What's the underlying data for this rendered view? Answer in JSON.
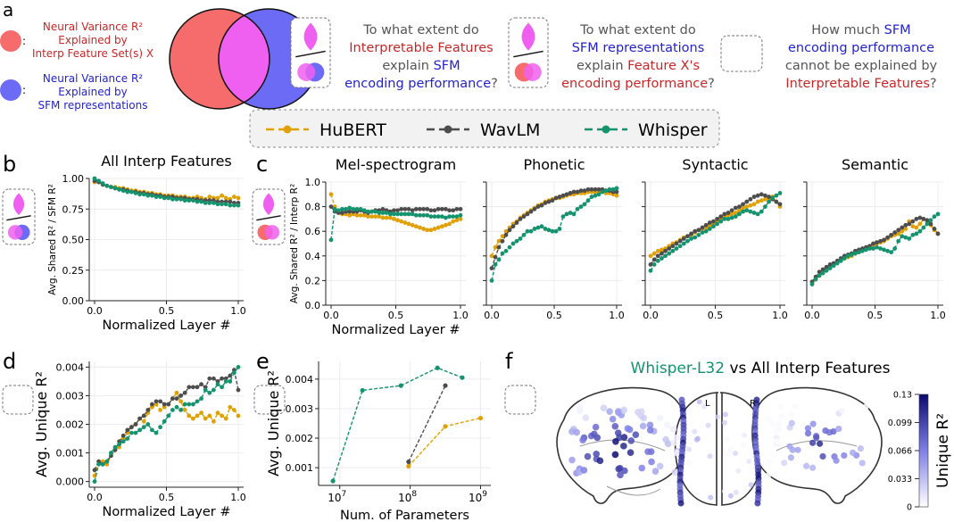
{
  "panel_letters": {
    "a": "a",
    "b": "b",
    "c": "c",
    "d": "d",
    "e": "e",
    "f": "f"
  },
  "legend_a": {
    "colon": ":",
    "red_text": [
      "Neural Variance R²",
      "Explained by",
      "Interp Feature Set(s) X"
    ],
    "blue_text": [
      "Neural Variance R²",
      "Explained by",
      "SFM representations"
    ]
  },
  "questions": {
    "q1": [
      [
        {
          "t": "To what extent do",
          "c": "gray"
        }
      ],
      [
        {
          "t": "Interpretable Features",
          "c": "red"
        }
      ],
      [
        {
          "t": "explain ",
          "c": "gray"
        },
        {
          "t": "SFM",
          "c": "blue"
        }
      ],
      [
        {
          "t": "encoding performance",
          "c": "blue"
        },
        {
          "t": "?",
          "c": "gray"
        }
      ]
    ],
    "q2": [
      [
        {
          "t": "To what extent do",
          "c": "gray"
        }
      ],
      [
        {
          "t": "SFM representations",
          "c": "blue"
        }
      ],
      [
        {
          "t": "explain ",
          "c": "gray"
        },
        {
          "t": "Feature X's",
          "c": "red"
        }
      ],
      [
        {
          "t": "encoding performance",
          "c": "red"
        },
        {
          "t": "?",
          "c": "gray"
        }
      ]
    ],
    "q3": [
      [
        {
          "t": "How much ",
          "c": "gray"
        },
        {
          "t": "SFM",
          "c": "blue"
        }
      ],
      [
        {
          "t": "encoding performance",
          "c": "blue"
        }
      ],
      [
        {
          "t": "cannot be explained by",
          "c": "gray"
        }
      ],
      [
        {
          "t": "Interpretable Features",
          "c": "red"
        },
        {
          "t": "?",
          "c": "gray"
        }
      ]
    ]
  },
  "colors": {
    "hubert": "#E0A106",
    "wavlm": "#4D4D4D",
    "whisper": "#14936E",
    "red": "#C62828",
    "blue": "#2323C8",
    "gray": "#555555",
    "venn_red": "#F66B6B",
    "venn_blue": "#6B6BF6",
    "venn_overlap": "#F060F0"
  },
  "model_legend": [
    "HuBERT",
    "WavLM",
    "Whisper"
  ],
  "chart_data": [
    {
      "id": "b",
      "type": "line",
      "title": "All Interp Features",
      "xlabel": "Normalized Layer #",
      "ylabel": "Avg. Shared R² / SFM R²",
      "xlim": [
        0,
        1
      ],
      "ylim": [
        0,
        1.0
      ],
      "xticks": [
        "0.0",
        "0.5",
        "1.0"
      ],
      "yticks": [
        "0.00",
        "0.25",
        "0.50",
        "0.75",
        "1.00"
      ],
      "series": [
        {
          "name": "HuBERT",
          "values": [
            0.97,
            0.97,
            0.95,
            0.94,
            0.93,
            0.93,
            0.92,
            0.92,
            0.91,
            0.9,
            0.9,
            0.89,
            0.89,
            0.88,
            0.88,
            0.87,
            0.87,
            0.86,
            0.86,
            0.86,
            0.85,
            0.85,
            0.85,
            0.84,
            0.84,
            0.85,
            0.84,
            0.83,
            0.85,
            0.84,
            0.84,
            0.86,
            0.84,
            0.83,
            0.85,
            0.84
          ]
        },
        {
          "name": "WavLM",
          "values": [
            0.98,
            0.97,
            0.95,
            0.94,
            0.93,
            0.92,
            0.91,
            0.91,
            0.9,
            0.89,
            0.89,
            0.88,
            0.88,
            0.87,
            0.87,
            0.86,
            0.86,
            0.85,
            0.85,
            0.85,
            0.84,
            0.84,
            0.84,
            0.83,
            0.83,
            0.83,
            0.82,
            0.82,
            0.82,
            0.82,
            0.81,
            0.81,
            0.81,
            0.81,
            0.8,
            0.8
          ]
        },
        {
          "name": "Whisper",
          "values": [
            1.0,
            0.98,
            0.96,
            0.94,
            0.93,
            0.92,
            0.91,
            0.9,
            0.89,
            0.89,
            0.88,
            0.87,
            0.87,
            0.86,
            0.86,
            0.85,
            0.85,
            0.84,
            0.84,
            0.83,
            0.83,
            0.83,
            0.82,
            0.82,
            0.82,
            0.81,
            0.81,
            0.8,
            0.8,
            0.8,
            0.79,
            0.79,
            0.79,
            0.78,
            0.78,
            0.78
          ]
        }
      ]
    },
    {
      "id": "c1",
      "type": "line",
      "title": "Mel-spectrogram",
      "xlabel": "Normalized Layer #",
      "ylabel": "Avg. Shared R² / Interp R²",
      "xlim": [
        0,
        1
      ],
      "ylim": [
        0,
        1.0
      ],
      "xticks": [
        "0.0",
        "0.5",
        "1.0"
      ],
      "yticks": [
        "0.0",
        "0.2",
        "0.4",
        "0.6",
        "0.8",
        "1.0"
      ],
      "series": [
        {
          "name": "HuBERT",
          "values": [
            0.9,
            0.8,
            0.76,
            0.74,
            0.74,
            0.73,
            0.74,
            0.73,
            0.73,
            0.73,
            0.72,
            0.72,
            0.72,
            0.72,
            0.71,
            0.71,
            0.71,
            0.7,
            0.69,
            0.68,
            0.67,
            0.66,
            0.65,
            0.64,
            0.63,
            0.62,
            0.61,
            0.61,
            0.62,
            0.63,
            0.64,
            0.65,
            0.66,
            0.68,
            0.69,
            0.7
          ]
        },
        {
          "name": "WavLM",
          "values": [
            0.8,
            0.76,
            0.75,
            0.75,
            0.76,
            0.76,
            0.76,
            0.76,
            0.77,
            0.76,
            0.75,
            0.76,
            0.77,
            0.77,
            0.78,
            0.77,
            0.76,
            0.77,
            0.77,
            0.78,
            0.78,
            0.78,
            0.77,
            0.78,
            0.78,
            0.78,
            0.78,
            0.77,
            0.77,
            0.78,
            0.78,
            0.78,
            0.77,
            0.77,
            0.78,
            0.78
          ]
        },
        {
          "name": "Whisper",
          "values": [
            0.53,
            0.78,
            0.77,
            0.78,
            0.78,
            0.79,
            0.78,
            0.78,
            0.78,
            0.77,
            0.76,
            0.76,
            0.76,
            0.75,
            0.75,
            0.75,
            0.74,
            0.74,
            0.74,
            0.74,
            0.74,
            0.74,
            0.74,
            0.73,
            0.73,
            0.73,
            0.73,
            0.72,
            0.72,
            0.72,
            0.72,
            0.71,
            0.72,
            0.72,
            0.72,
            0.73
          ]
        }
      ]
    },
    {
      "id": "c2",
      "type": "line",
      "title": "Phonetic",
      "xlim": [
        0,
        1
      ],
      "ylim": [
        0,
        1.0
      ],
      "xticks": [
        "0.0",
        "0.5",
        "1.0"
      ],
      "series": [
        {
          "name": "HuBERT",
          "values": [
            0.4,
            0.47,
            0.52,
            0.56,
            0.6,
            0.63,
            0.66,
            0.68,
            0.71,
            0.73,
            0.75,
            0.77,
            0.79,
            0.81,
            0.82,
            0.84,
            0.85,
            0.86,
            0.87,
            0.87,
            0.88,
            0.89,
            0.9,
            0.9,
            0.91,
            0.91,
            0.91,
            0.92,
            0.92,
            0.92,
            0.92,
            0.92,
            0.91,
            0.91,
            0.9,
            0.89
          ]
        },
        {
          "name": "WavLM",
          "values": [
            0.3,
            0.39,
            0.47,
            0.52,
            0.57,
            0.61,
            0.64,
            0.67,
            0.7,
            0.72,
            0.74,
            0.76,
            0.78,
            0.8,
            0.81,
            0.83,
            0.84,
            0.85,
            0.87,
            0.88,
            0.89,
            0.9,
            0.91,
            0.92,
            0.92,
            0.93,
            0.93,
            0.94,
            0.94,
            0.94,
            0.94,
            0.94,
            0.93,
            0.93,
            0.92,
            0.92
          ]
        },
        {
          "name": "Whisper",
          "values": [
            0.2,
            0.33,
            0.37,
            0.42,
            0.44,
            0.47,
            0.5,
            0.52,
            0.54,
            0.57,
            0.6,
            0.6,
            0.62,
            0.63,
            0.64,
            0.62,
            0.61,
            0.6,
            0.6,
            0.62,
            0.72,
            0.74,
            0.75,
            0.74,
            0.78,
            0.8,
            0.82,
            0.85,
            0.88,
            0.89,
            0.9,
            0.92,
            0.93,
            0.94,
            0.94,
            0.95
          ]
        }
      ]
    },
    {
      "id": "c3",
      "type": "line",
      "title": "Syntactic",
      "xlim": [
        0,
        1
      ],
      "ylim": [
        0,
        1.0
      ],
      "xticks": [
        "0.0",
        "0.5",
        "1.0"
      ],
      "series": [
        {
          "name": "HuBERT",
          "values": [
            0.4,
            0.42,
            0.44,
            0.45,
            0.46,
            0.48,
            0.5,
            0.51,
            0.53,
            0.55,
            0.56,
            0.57,
            0.59,
            0.61,
            0.62,
            0.63,
            0.65,
            0.66,
            0.68,
            0.7,
            0.71,
            0.73,
            0.74,
            0.75,
            0.77,
            0.79,
            0.8,
            0.81,
            0.82,
            0.84,
            0.85,
            0.86,
            0.87,
            0.88,
            0.84,
            0.8
          ]
        },
        {
          "name": "WavLM",
          "values": [
            0.33,
            0.37,
            0.4,
            0.42,
            0.44,
            0.46,
            0.48,
            0.5,
            0.52,
            0.54,
            0.56,
            0.58,
            0.6,
            0.61,
            0.63,
            0.65,
            0.67,
            0.68,
            0.7,
            0.72,
            0.74,
            0.75,
            0.77,
            0.79,
            0.8,
            0.82,
            0.84,
            0.86,
            0.88,
            0.89,
            0.9,
            0.89,
            0.88,
            0.86,
            0.84,
            0.82
          ]
        },
        {
          "name": "Whisper",
          "values": [
            0.28,
            0.33,
            0.36,
            0.38,
            0.4,
            0.42,
            0.44,
            0.46,
            0.48,
            0.5,
            0.52,
            0.54,
            0.55,
            0.57,
            0.59,
            0.6,
            0.62,
            0.64,
            0.66,
            0.68,
            0.7,
            0.7,
            0.71,
            0.72,
            0.74,
            0.76,
            0.77,
            0.76,
            0.75,
            0.74,
            0.76,
            0.8,
            0.84,
            0.87,
            0.89,
            0.91
          ]
        }
      ]
    },
    {
      "id": "c4",
      "type": "line",
      "title": "Semantic",
      "xlim": [
        0,
        1
      ],
      "ylim": [
        0,
        1.0
      ],
      "xticks": [
        "0.0",
        "0.5",
        "1.0"
      ],
      "series": [
        {
          "name": "HuBERT",
          "values": [
            0.18,
            0.21,
            0.24,
            0.27,
            0.29,
            0.31,
            0.33,
            0.35,
            0.36,
            0.38,
            0.39,
            0.4,
            0.42,
            0.43,
            0.45,
            0.47,
            0.48,
            0.49,
            0.5,
            0.51,
            0.52,
            0.54,
            0.56,
            0.57,
            0.58,
            0.6,
            0.62,
            0.68,
            0.64,
            0.63,
            0.66,
            0.7,
            0.68,
            0.65,
            0.61,
            0.58
          ]
        },
        {
          "name": "WavLM",
          "values": [
            0.19,
            0.23,
            0.27,
            0.29,
            0.31,
            0.33,
            0.34,
            0.36,
            0.38,
            0.4,
            0.41,
            0.42,
            0.44,
            0.45,
            0.46,
            0.47,
            0.48,
            0.5,
            0.51,
            0.52,
            0.53,
            0.55,
            0.57,
            0.59,
            0.61,
            0.63,
            0.65,
            0.66,
            0.68,
            0.7,
            0.71,
            0.7,
            0.69,
            0.66,
            0.62,
            0.58
          ]
        },
        {
          "name": "Whisper",
          "values": [
            0.17,
            0.21,
            0.24,
            0.26,
            0.28,
            0.3,
            0.32,
            0.34,
            0.36,
            0.38,
            0.4,
            0.41,
            0.42,
            0.43,
            0.44,
            0.45,
            0.46,
            0.46,
            0.47,
            0.46,
            0.45,
            0.44,
            0.43,
            0.46,
            0.52,
            0.56,
            0.55,
            0.54,
            0.57,
            0.58,
            0.6,
            0.63,
            0.66,
            0.69,
            0.72,
            0.74
          ]
        }
      ]
    },
    {
      "id": "d",
      "type": "line",
      "title": "",
      "xlabel": "Normalized Layer #",
      "ylabel": "Avg. Unique R²",
      "xlim": [
        0,
        1
      ],
      "ylim": [
        -0.0002,
        0.0042
      ],
      "xticks": [
        "0.0",
        "0.5",
        "1.0"
      ],
      "yticks": [
        "0.000",
        "0.001",
        "0.002",
        "0.003",
        "0.004"
      ],
      "series": [
        {
          "name": "HuBERT",
          "values": [
            0.0002,
            0.0007,
            0.0007,
            0.0006,
            0.0009,
            0.0011,
            0.0012,
            0.0015,
            0.0017,
            0.0019,
            0.002,
            0.0022,
            0.0021,
            0.0024,
            0.0026,
            0.0027,
            0.0025,
            0.0026,
            0.0027,
            0.0029,
            0.0031,
            0.0028,
            0.0025,
            0.0023,
            0.0022,
            0.0023,
            0.0024,
            0.0022,
            0.0023,
            0.0021,
            0.0024,
            0.0023,
            0.0022,
            0.0026,
            0.0025,
            0.0023
          ]
        },
        {
          "name": "WavLM",
          "values": [
            0.0004,
            0.0007,
            0.0006,
            0.0007,
            0.0009,
            0.0011,
            0.0014,
            0.0016,
            0.0018,
            0.0019,
            0.002,
            0.0022,
            0.0023,
            0.0025,
            0.0027,
            0.0028,
            0.0028,
            0.0027,
            0.0027,
            0.0029,
            0.0029,
            0.003,
            0.0031,
            0.0033,
            0.0033,
            0.0033,
            0.0034,
            0.0033,
            0.0036,
            0.0036,
            0.0035,
            0.0036,
            0.0036,
            0.0037,
            0.0039,
            0.0032
          ]
        },
        {
          "name": "Whisper",
          "values": [
            0.0,
            0.0006,
            0.0006,
            0.0007,
            0.001,
            0.0012,
            0.0013,
            0.0014,
            0.0015,
            0.0017,
            0.0017,
            0.0018,
            0.0019,
            0.002,
            0.0018,
            0.0017,
            0.0019,
            0.0021,
            0.0023,
            0.0025,
            0.0026,
            0.0025,
            0.0027,
            0.0027,
            0.0027,
            0.0028,
            0.0029,
            0.0032,
            0.0031,
            0.0032,
            0.0034,
            0.0033,
            0.0035,
            0.0035,
            0.0038,
            0.004
          ]
        }
      ]
    },
    {
      "id": "e",
      "type": "line",
      "xscale": "log",
      "xlabel": "Num. of Parameters",
      "ylabel": "Avg. Unique R²",
      "xlim": [
        5000000,
        1400000000
      ],
      "ylim": [
        0.0004,
        0.0046
      ],
      "xticks": [
        {
          "v": 10000000,
          "b": "10",
          "e": "7"
        },
        {
          "v": 100000000,
          "b": "10",
          "e": "8"
        },
        {
          "v": 1000000000,
          "b": "10",
          "e": "9"
        }
      ],
      "yticks": [
        "0.001",
        "0.002",
        "0.003",
        "0.004"
      ],
      "series": [
        {
          "name": "HuBERT",
          "x": [
            95000000,
            316000000,
            1000000000
          ],
          "values": [
            0.00105,
            0.0024,
            0.00268
          ]
        },
        {
          "name": "WavLM",
          "x": [
            95000000,
            316000000
          ],
          "values": [
            0.0012,
            0.00378
          ]
        },
        {
          "name": "Whisper",
          "x": [
            8000000,
            21000000,
            74000000,
            244000000,
            550000000
          ],
          "values": [
            0.00055,
            0.00362,
            0.00378,
            0.00438,
            0.00405
          ]
        }
      ]
    }
  ],
  "panel_f": {
    "title_model": "Whisper-L32",
    "title_rest": " vs All Interp Features",
    "hemisphere_left": "L",
    "hemisphere_right": "R",
    "colorbar_label": "Unique R²",
    "colorbar_ticks": [
      "0.13",
      "0.099",
      "0.066",
      "0.033",
      "0"
    ]
  }
}
